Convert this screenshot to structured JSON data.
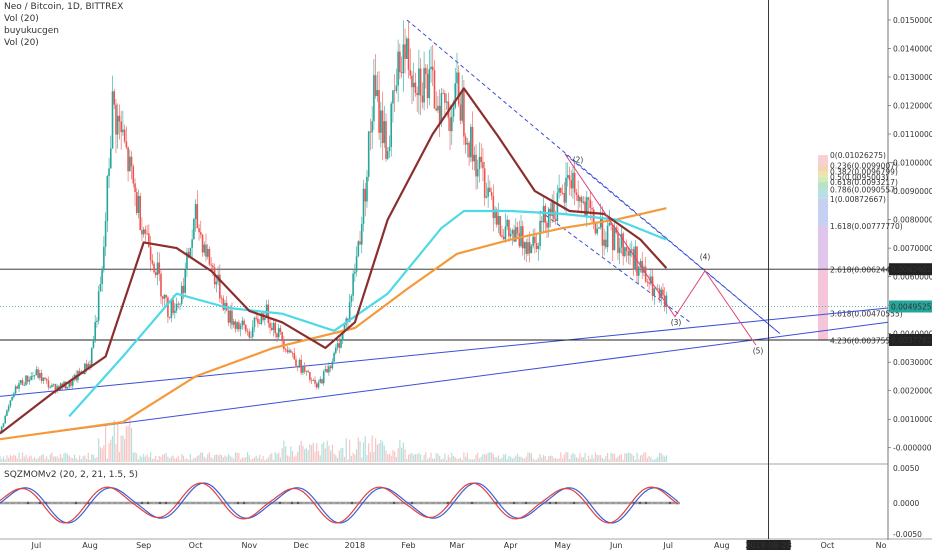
{
  "header": {
    "title": "Neo / Bitcoin, 1D, BITTREX",
    "lines": [
      "Vol (20)",
      "buyukucgen",
      "Vol (20)"
    ],
    "osc_title": "SQZMOMv2 (20, 2, 21, 1.5, 5)"
  },
  "colors": {
    "up": "#26a69a",
    "down": "#ef5350",
    "ma_fast": "#8b2e2e",
    "ma_mid": "#4dd9e6",
    "ma_slow": "#f59a3a",
    "channel": "#3a4fd9",
    "wave": "#e0407a",
    "fib_fill": "#f2b8cf"
  },
  "price_axis": {
    "ticks": [
      "0.01500000",
      "0.01400000",
      "0.01300000",
      "0.01200000",
      "0.01100000",
      "0.01000000",
      "0.00900000",
      "0.00800000",
      "0.00700000",
      "0.00600000",
      "0.00500000",
      "0.00400000",
      "0.00300000",
      "0.00200000",
      "0.00100000",
      "-0.00000000"
    ],
    "current_price": "0.00495250",
    "level_a": "0.00626027",
    "level_b": "0.00377824"
  },
  "osc_axis": {
    "ticks": [
      "0.0050",
      "0.0000",
      "-0.0050"
    ]
  },
  "time_axis": {
    "months": [
      "Jul",
      "Aug",
      "Sep",
      "Oct",
      "Nov",
      "Dec",
      "2018",
      "Feb",
      "Mar",
      "Apr",
      "May",
      "Jun",
      "Jul",
      "Aug",
      "Sep",
      "Oct",
      "No"
    ],
    "cursor_date": "2018-08-28"
  },
  "fib_labels": [
    "0(0.01026275)",
    "0.236(0.0099007)",
    "0.382(0.0096799)",
    "0.5(0.0095003)",
    "0.618(0.0093217)",
    "0.786(0.0090557)",
    "1(0.00872667)",
    "1.618(0.00777770)",
    "2.618(0.0062440)",
    "3.618(0.00470555)",
    "4.236(0.0037555)"
  ],
  "wave_labels": [
    "(2)",
    "(3)",
    "(4)",
    "(5)"
  ],
  "chart_data": {
    "type": "candlestick",
    "title": "Neo / Bitcoin, 1D, BITTREX",
    "ylim": [
      -0.0005,
      0.0157
    ],
    "x_range": [
      "2017-06-10",
      "2018-11-05"
    ],
    "series_close": [
      {
        "date": "2017-06-10",
        "value": 0.0006
      },
      {
        "date": "2017-06-20",
        "value": 0.0022
      },
      {
        "date": "2017-07-01",
        "value": 0.0026
      },
      {
        "date": "2017-07-10",
        "value": 0.0021
      },
      {
        "date": "2017-07-20",
        "value": 0.0022
      },
      {
        "date": "2017-08-01",
        "value": 0.003
      },
      {
        "date": "2017-08-08",
        "value": 0.006
      },
      {
        "date": "2017-08-14",
        "value": 0.012
      },
      {
        "date": "2017-08-20",
        "value": 0.0108
      },
      {
        "date": "2017-08-28",
        "value": 0.0086
      },
      {
        "date": "2017-09-05",
        "value": 0.007
      },
      {
        "date": "2017-09-15",
        "value": 0.0048
      },
      {
        "date": "2017-09-22",
        "value": 0.0052
      },
      {
        "date": "2017-10-01",
        "value": 0.008
      },
      {
        "date": "2017-10-10",
        "value": 0.0064
      },
      {
        "date": "2017-10-20",
        "value": 0.0046
      },
      {
        "date": "2017-11-01",
        "value": 0.004
      },
      {
        "date": "2017-11-10",
        "value": 0.0048
      },
      {
        "date": "2017-11-20",
        "value": 0.0038
      },
      {
        "date": "2017-12-01",
        "value": 0.0028
      },
      {
        "date": "2017-12-10",
        "value": 0.0021
      },
      {
        "date": "2017-12-20",
        "value": 0.0032
      },
      {
        "date": "2017-12-28",
        "value": 0.0046
      },
      {
        "date": "2018-01-05",
        "value": 0.008
      },
      {
        "date": "2018-01-12",
        "value": 0.0124
      },
      {
        "date": "2018-01-20",
        "value": 0.0105
      },
      {
        "date": "2018-01-28",
        "value": 0.014
      },
      {
        "date": "2018-02-05",
        "value": 0.0132
      },
      {
        "date": "2018-02-15",
        "value": 0.0125
      },
      {
        "date": "2018-02-25",
        "value": 0.0118
      },
      {
        "date": "2018-03-02",
        "value": 0.0125
      },
      {
        "date": "2018-03-10",
        "value": 0.0103
      },
      {
        "date": "2018-03-20",
        "value": 0.009
      },
      {
        "date": "2018-03-28",
        "value": 0.0076
      },
      {
        "date": "2018-04-05",
        "value": 0.0073
      },
      {
        "date": "2018-04-15",
        "value": 0.0073
      },
      {
        "date": "2018-04-22",
        "value": 0.0083
      },
      {
        "date": "2018-05-01",
        "value": 0.0086
      },
      {
        "date": "2018-05-05",
        "value": 0.0096
      },
      {
        "date": "2018-05-12",
        "value": 0.0085
      },
      {
        "date": "2018-05-20",
        "value": 0.0078
      },
      {
        "date": "2018-05-28",
        "value": 0.0074
      },
      {
        "date": "2018-06-05",
        "value": 0.0071
      },
      {
        "date": "2018-06-12",
        "value": 0.0066
      },
      {
        "date": "2018-06-18",
        "value": 0.0059
      },
      {
        "date": "2018-06-25",
        "value": 0.0053
      },
      {
        "date": "2018-06-30",
        "value": 0.005
      }
    ],
    "ma_fast": [
      {
        "date": "2017-06-10",
        "value": 0.0005
      },
      {
        "date": "2017-07-10",
        "value": 0.0019
      },
      {
        "date": "2017-08-10",
        "value": 0.0032
      },
      {
        "date": "2017-09-01",
        "value": 0.0072
      },
      {
        "date": "2017-09-20",
        "value": 0.007
      },
      {
        "date": "2017-10-10",
        "value": 0.0062
      },
      {
        "date": "2017-11-01",
        "value": 0.0048
      },
      {
        "date": "2017-11-20",
        "value": 0.0044
      },
      {
        "date": "2017-12-15",
        "value": 0.0035
      },
      {
        "date": "2018-01-01",
        "value": 0.0044
      },
      {
        "date": "2018-01-20",
        "value": 0.008
      },
      {
        "date": "2018-02-15",
        "value": 0.011
      },
      {
        "date": "2018-03-05",
        "value": 0.0126
      },
      {
        "date": "2018-03-25",
        "value": 0.0109
      },
      {
        "date": "2018-04-15",
        "value": 0.009
      },
      {
        "date": "2018-05-05",
        "value": 0.0083
      },
      {
        "date": "2018-05-25",
        "value": 0.0082
      },
      {
        "date": "2018-06-15",
        "value": 0.0073
      },
      {
        "date": "2018-06-30",
        "value": 0.0063
      }
    ],
    "ma_mid": [
      {
        "date": "2017-07-20",
        "value": 0.0011
      },
      {
        "date": "2017-08-20",
        "value": 0.0032
      },
      {
        "date": "2017-09-20",
        "value": 0.0054
      },
      {
        "date": "2017-10-20",
        "value": 0.0049
      },
      {
        "date": "2017-11-20",
        "value": 0.0047
      },
      {
        "date": "2017-12-20",
        "value": 0.0041
      },
      {
        "date": "2018-01-20",
        "value": 0.0054
      },
      {
        "date": "2018-02-20",
        "value": 0.0077
      },
      {
        "date": "2018-03-05",
        "value": 0.0083
      },
      {
        "date": "2018-04-01",
        "value": 0.0083
      },
      {
        "date": "2018-05-01",
        "value": 0.0082
      },
      {
        "date": "2018-06-01",
        "value": 0.008
      },
      {
        "date": "2018-06-30",
        "value": 0.0073
      }
    ],
    "ma_slow": [
      {
        "date": "2017-06-10",
        "value": 0.0003
      },
      {
        "date": "2017-08-20",
        "value": 0.0009
      },
      {
        "date": "2017-10-01",
        "value": 0.0025
      },
      {
        "date": "2017-11-15",
        "value": 0.0035
      },
      {
        "date": "2018-01-01",
        "value": 0.0042
      },
      {
        "date": "2018-02-01",
        "value": 0.0056
      },
      {
        "date": "2018-03-01",
        "value": 0.0068
      },
      {
        "date": "2018-04-01",
        "value": 0.0073
      },
      {
        "date": "2018-05-01",
        "value": 0.0077
      },
      {
        "date": "2018-06-01",
        "value": 0.008
      },
      {
        "date": "2018-06-30",
        "value": 0.0084
      }
    ],
    "levels": {
      "current": 0.0049525,
      "resistance": 0.00626027,
      "support": 0.00377824
    },
    "fib_levels": [
      0.01026275,
      0.0099007,
      0.0096799,
      0.0095003,
      0.0093217,
      0.0090557,
      0.00872667,
      0.0077777,
      0.006244,
      0.00470555,
      0.0037555
    ],
    "legend": "top-left",
    "grid": false
  }
}
